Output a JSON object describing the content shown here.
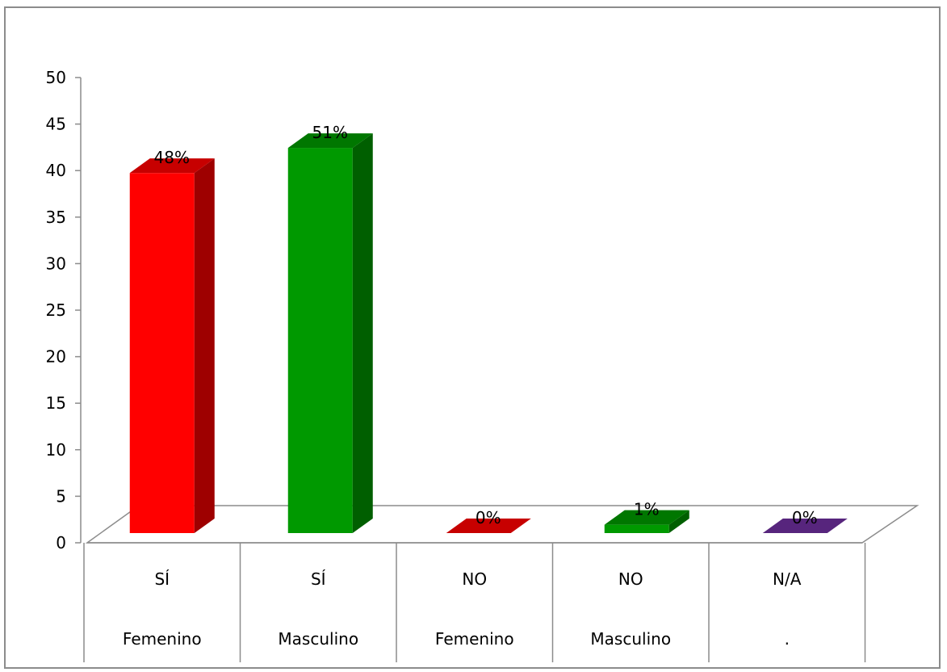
{
  "chart_data": {
    "type": "bar",
    "categories": [
      {
        "level1": "SÍ",
        "level2": "Femenino"
      },
      {
        "level1": "SÍ",
        "level2": "Masculino"
      },
      {
        "level1": "NO",
        "level2": "Femenino"
      },
      {
        "level1": "NO",
        "level2": "Masculino"
      },
      {
        "level1": "N/A",
        "level2": "."
      }
    ],
    "values": [
      43,
      46,
      0,
      1,
      0
    ],
    "data_labels": [
      "48%",
      "51%",
      "0%",
      "1%",
      "0%"
    ],
    "colors": [
      "#ff0000",
      "#009900",
      "#ff0000",
      "#009900",
      "#7030a0"
    ],
    "ylim": [
      0,
      50
    ],
    "yticks": [
      0,
      5,
      10,
      15,
      20,
      25,
      30,
      35,
      40,
      45,
      50
    ],
    "title": "",
    "xlabel": "",
    "ylabel": "",
    "grid": false,
    "legend": "none",
    "style": "3d-column"
  }
}
